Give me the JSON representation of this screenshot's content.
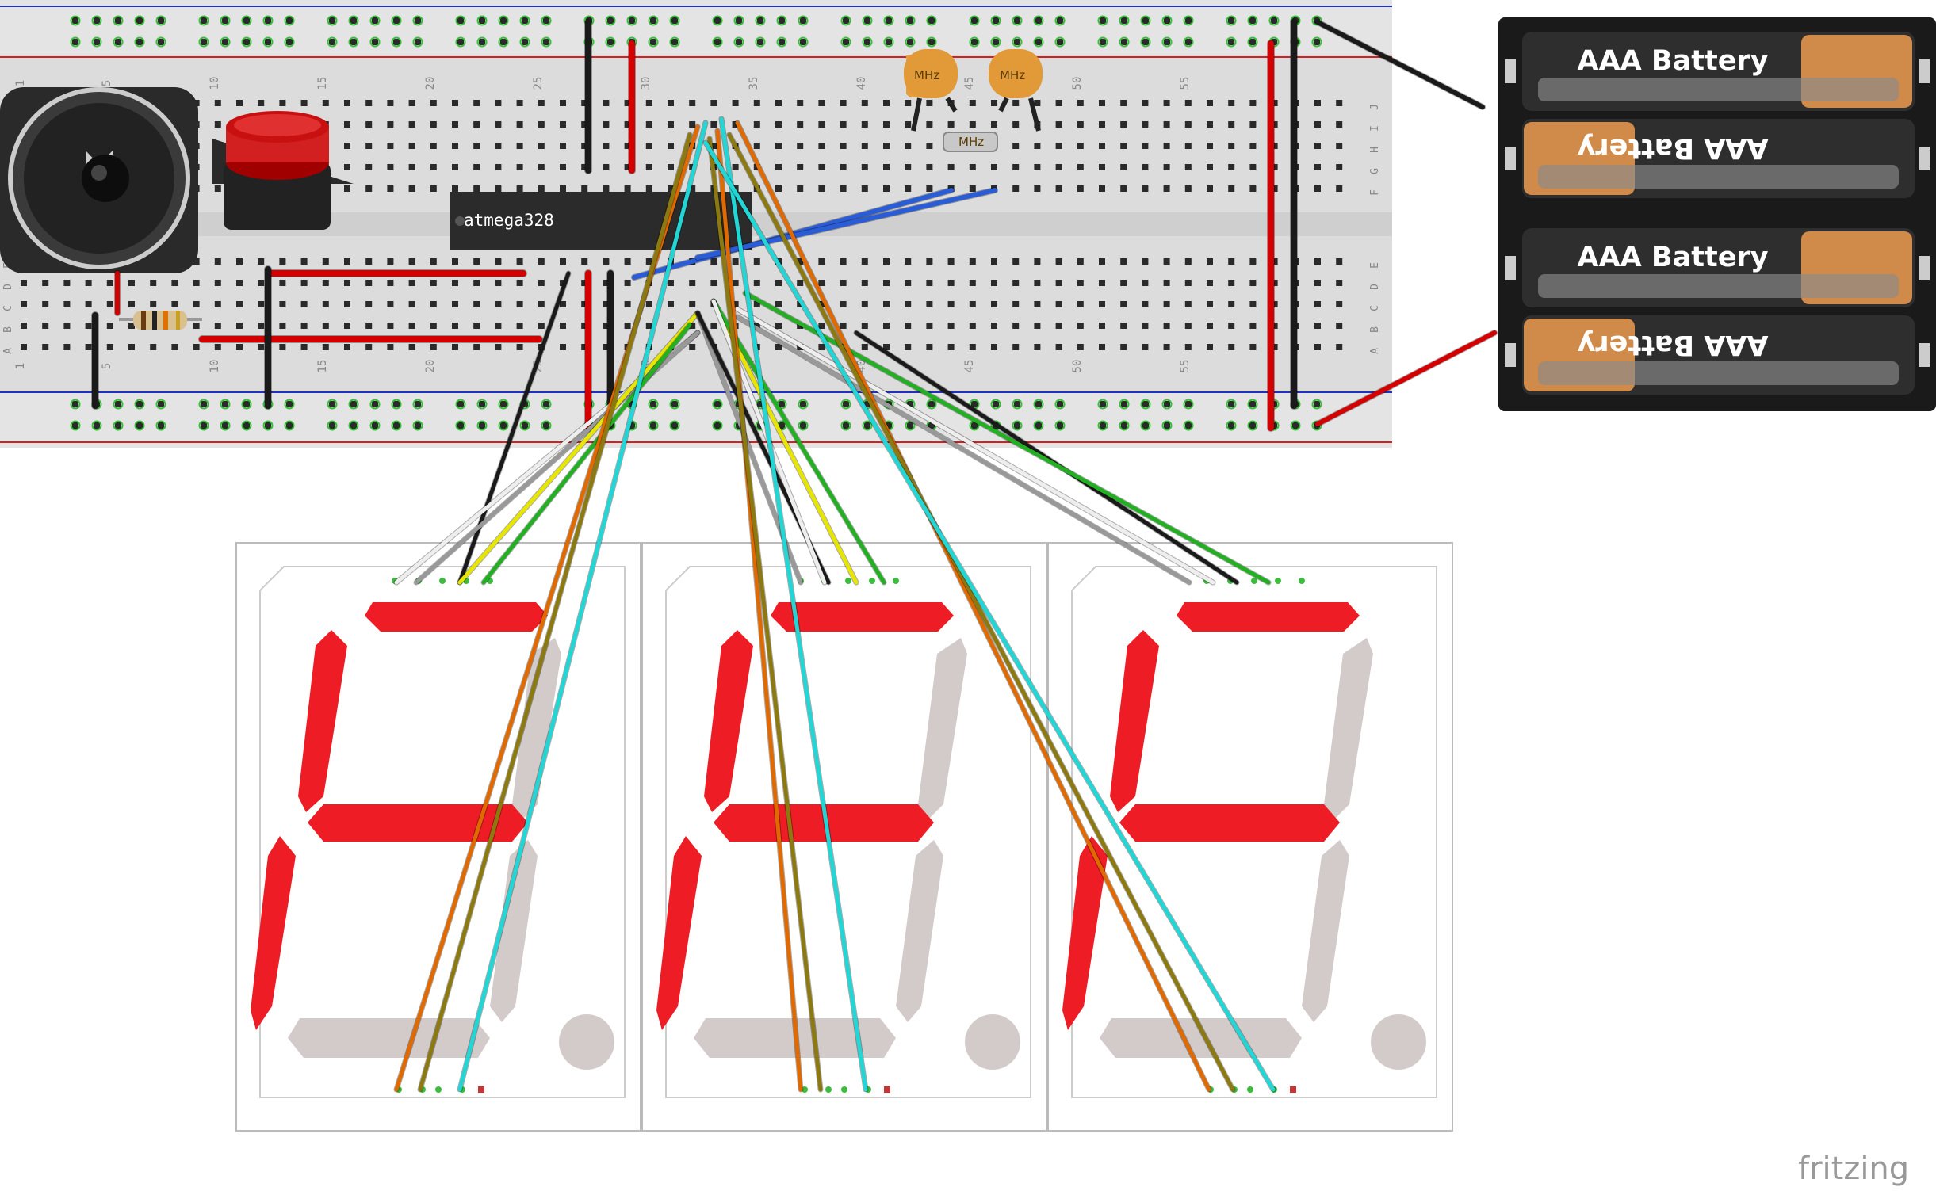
{
  "chip": {
    "label": "atmega328"
  },
  "crystal": {
    "cap_label": "MHz",
    "crystal_label": "MHz"
  },
  "battery": {
    "cell_label": "AAA Battery"
  },
  "brand": {
    "label": "fritzing"
  },
  "breadboard": {
    "column_numbers": [
      "1",
      "5",
      "10",
      "15",
      "20",
      "25",
      "30",
      "35",
      "40",
      "45",
      "50",
      "55"
    ],
    "row_letters_top": [
      "J",
      "I",
      "H",
      "G",
      "F"
    ],
    "row_letters_bottom": [
      "E",
      "D",
      "C",
      "B",
      "A"
    ]
  },
  "display": {
    "digit_count": 3,
    "lit_segments": [
      [
        "a",
        "f",
        "g",
        "c",
        "d_off",
        "e"
      ],
      [
        "a",
        "f",
        "g",
        "e"
      ],
      [
        "a",
        "f",
        "g",
        "e"
      ]
    ]
  },
  "colors": {
    "breadboard": "#d9d9d9",
    "rail_red": "#d42020",
    "rail_blue": "#2030c0",
    "segment_on": "#ee1c24",
    "segment_off": "#d3cbca",
    "wire_red": "#d40000",
    "wire_black": "#1a1a1a",
    "wire_cyan": "#22d6d6",
    "wire_orange": "#e06a00",
    "wire_olive": "#8c7a10",
    "wire_green": "#22b022",
    "wire_yellow": "#e6e600",
    "wire_white": "#eeeeee",
    "wire_grey": "#999999",
    "wire_blue": "#2a5cd6"
  }
}
